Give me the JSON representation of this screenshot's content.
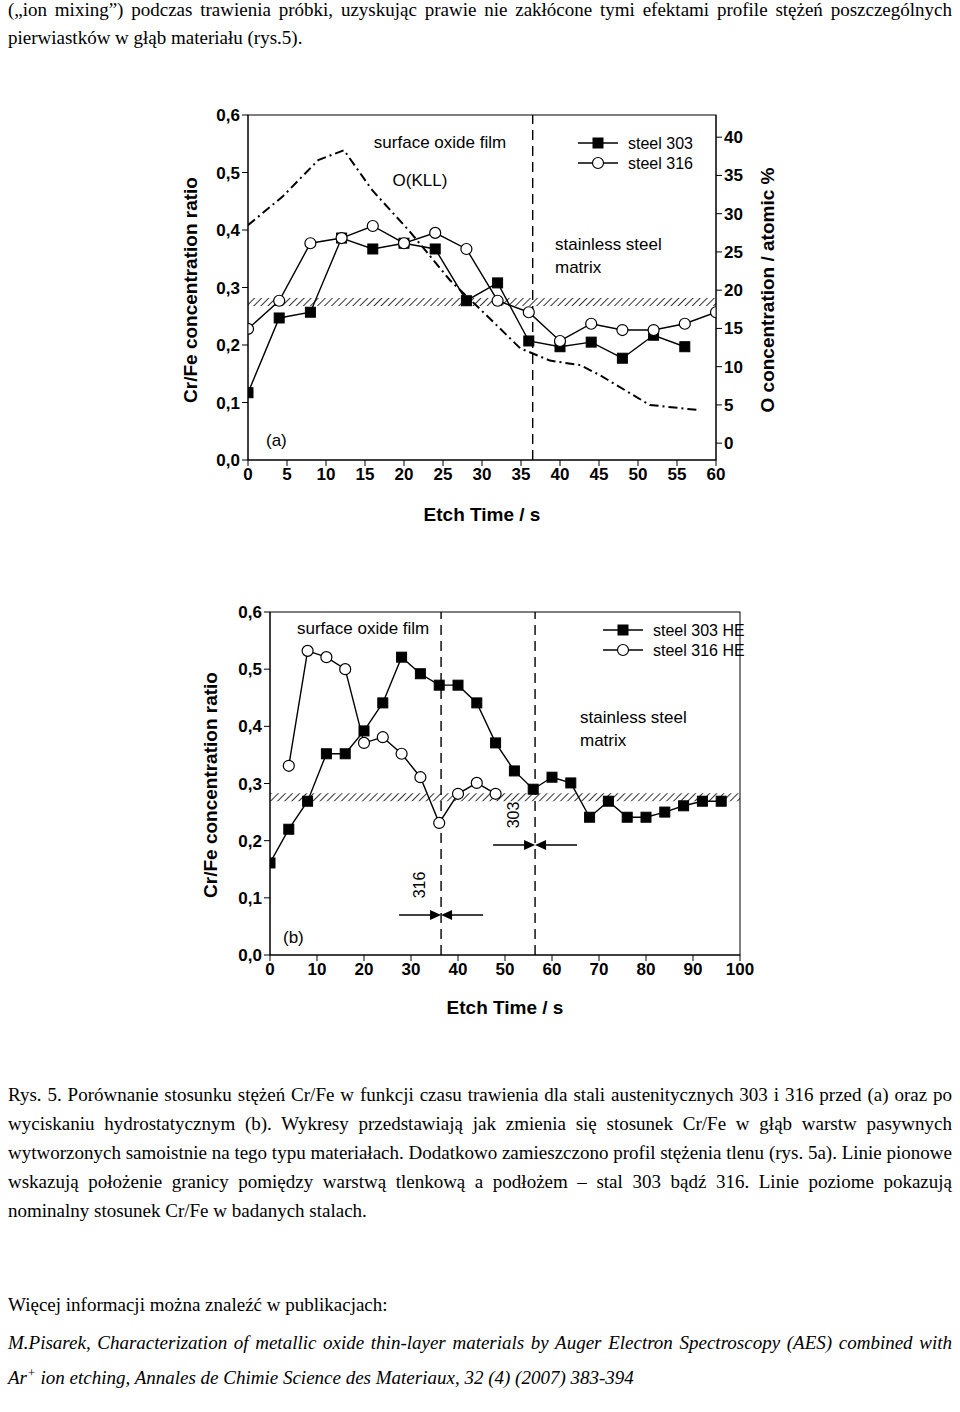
{
  "top_text": "(„ion mixing”) podczas trawienia próbki, uzyskując prawie nie zakłócone tymi efektami profile stężeń poszczególnych pierwiastków w głąb materiału (rys.5).",
  "chart_data": [
    {
      "type": "line",
      "xlabel": "Etch Time / s",
      "ylabel": "Cr/Fe concentration ratio",
      "y2label": "O concentration / atomic %",
      "xlim": [
        0,
        60
      ],
      "xticks": [
        0,
        5,
        10,
        15,
        20,
        25,
        30,
        35,
        40,
        45,
        50,
        55,
        60
      ],
      "ylim": [
        0,
        0.6
      ],
      "yticks": [
        {
          "value": 0,
          "label": "0,0"
        },
        {
          "value": 0.1,
          "label": "0,1"
        },
        {
          "value": 0.2,
          "label": "0,2"
        },
        {
          "value": 0.3,
          "label": "0,3"
        },
        {
          "value": 0.4,
          "label": "0,4"
        },
        {
          "value": 0.5,
          "label": "0,5"
        },
        {
          "value": 0.6,
          "label": "0,6"
        }
      ],
      "y2lim": [
        -2.2,
        42.9
      ],
      "y2ticks": [
        0,
        5,
        10,
        15,
        20,
        25,
        30,
        35,
        40
      ],
      "grid": false,
      "legend": "upper right",
      "series": [
        {
          "name": "steel 303",
          "color": "#000000",
          "marker": "square",
          "line_style": "solid",
          "x": [
            0,
            4,
            8,
            12,
            16,
            20,
            24,
            28,
            32,
            36,
            40,
            44,
            48,
            52,
            56
          ],
          "values": [
            0.117,
            0.247,
            0.257,
            0.386,
            0.367,
            0.377,
            0.367,
            0.277,
            0.308,
            0.207,
            0.197,
            0.205,
            0.177,
            0.217,
            0.197
          ]
        },
        {
          "name": "steel 316",
          "color": "#000000",
          "marker": "circle",
          "line_style": "solid",
          "x": [
            0,
            4,
            8,
            12,
            16,
            20,
            24,
            28,
            32,
            36,
            40,
            44,
            48,
            52,
            56,
            60
          ],
          "values": [
            0.228,
            0.277,
            0.377,
            0.386,
            0.407,
            0.377,
            0.395,
            0.367,
            0.277,
            0.257,
            0.207,
            0.237,
            0.226,
            0.226,
            0.237,
            0.257
          ]
        },
        {
          "color": "#000000",
          "marker": "none",
          "line_style": "dashdot",
          "axis": "y2",
          "x": [
            0,
            4.4,
            9,
            12.3,
            15.9,
            20.8,
            25.9,
            31,
            34.9,
            38.7,
            42.6,
            45.1,
            51.5,
            58
          ],
          "values": [
            28.5,
            32.2,
            37,
            38.3,
            33.1,
            27.6,
            21.3,
            16.3,
            12.4,
            10.8,
            10.2,
            8.9,
            5,
            4.3
          ]
        }
      ],
      "hlines": [
        0.275
      ],
      "vlines": [
        {
          "value": 36.5
        }
      ],
      "annotations": [
        "surface oxide film",
        "stainless steel matrix",
        "(a)",
        "O(KLL)"
      ]
    },
    {
      "type": "line",
      "xlabel": "Etch Time / s",
      "ylabel": "Cr/Fe concentration ratio",
      "xlim": [
        0,
        100
      ],
      "xticks": [
        0,
        10,
        20,
        30,
        40,
        50,
        60,
        70,
        80,
        90,
        100
      ],
      "ylim": [
        0,
        0.6
      ],
      "yticks": [
        {
          "value": 0,
          "label": "0,0"
        },
        {
          "value": 0.1,
          "label": "0,1"
        },
        {
          "value": 0.2,
          "label": "0,2"
        },
        {
          "value": 0.3,
          "label": "0,3"
        },
        {
          "value": 0.4,
          "label": "0,4"
        },
        {
          "value": 0.5,
          "label": "0,5"
        },
        {
          "value": 0.6,
          "label": "0,6"
        }
      ],
      "grid": false,
      "legend": "upper right",
      "series": [
        {
          "name": "steel 303 HE",
          "color": "#000000",
          "marker": "square",
          "line_style": "solid",
          "x": [
            0,
            4,
            8,
            12,
            16,
            20,
            24,
            28,
            32,
            36,
            40,
            44,
            48,
            52,
            56,
            60,
            64,
            68,
            72,
            76,
            80,
            84,
            88,
            92,
            96
          ],
          "values": [
            0.161,
            0.22,
            0.269,
            0.352,
            0.352,
            0.392,
            0.441,
            0.521,
            0.492,
            0.472,
            0.472,
            0.441,
            0.371,
            0.322,
            0.29,
            0.311,
            0.301,
            0.241,
            0.269,
            0.241,
            0.241,
            0.25,
            0.261,
            0.269,
            0.269
          ]
        },
        {
          "name": "steel 316 HE",
          "color": "#000000",
          "marker": "circle",
          "line_style": "solid",
          "x": [
            4,
            8,
            12,
            16,
            20,
            24,
            28,
            32,
            36,
            40,
            44,
            48
          ],
          "values": [
            0.331,
            0.532,
            0.521,
            0.5,
            0.371,
            0.381,
            0.352,
            0.311,
            0.231,
            0.282,
            0.301,
            0.282
          ]
        }
      ],
      "hlines": [
        0.276
      ],
      "vlines": [
        {
          "value": 36.4,
          "label": "316"
        },
        {
          "value": 56.4,
          "label": "303"
        }
      ],
      "annotations": [
        "surface oxide film",
        "stainless steel matrix",
        "(b)"
      ]
    }
  ],
  "caption": "Rys. 5. Porównanie stosunku stężeń Cr/Fe w funkcji czasu trawienia dla stali austenitycznych 303 i 316 przed (a) oraz po wyciskaniu hydrostatycznym (b). Wykresy przedstawiają jak zmienia się stosunek Cr/Fe w głąb warstw pasywnych wytworzonych samoistnie na tego typu materiałach. Dodatkowo zamieszczono profil stężenia tlenu (rys. 5a). Linie pionowe wskazują położenie granicy pomiędzy warstwą tlenkową a podłożem – stal 303 bądź 316. Linie poziome pokazują nominalny stosunek Cr/Fe w badanych stalach.",
  "more_info": "Więcej informacji można znaleźć w publikacjach:",
  "reference": {
    "before": "M.Pisarek, Characterization of metallic oxide thin-layer materials by Auger Electron Spectroscopy (AES) combined with Ar",
    "sup": "+",
    "after": " ion etching, Annales de Chimie Science des Materiaux, 32 (4) (2007) 383-394"
  }
}
